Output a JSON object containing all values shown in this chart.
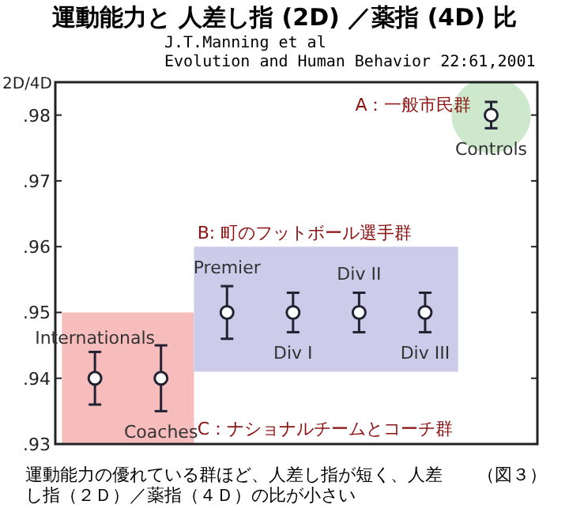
{
  "chart_data": {
    "type": "scatter",
    "title": "運動能力と 人差し指 (2D) ／薬指 (4D) 比",
    "subtitle": "J.T.Manning et al\nEvolution and Human Behavior 22:61,2001",
    "ylabel": "2D/4D",
    "categories": [
      "Internationals",
      "Coaches",
      "Premier",
      "Div I",
      "Div II",
      "Div III",
      "Controls"
    ],
    "values": [
      0.94,
      0.94,
      0.95,
      0.95,
      0.95,
      0.95,
      0.98
    ],
    "errors": [
      [
        0.936,
        0.944
      ],
      [
        0.935,
        0.945
      ],
      [
        0.946,
        0.954
      ],
      [
        0.947,
        0.953
      ],
      [
        0.947,
        0.953
      ],
      [
        0.947,
        0.953
      ],
      [
        0.978,
        0.982
      ]
    ],
    "color": "#222233",
    "marker": "circle",
    "ylim": [
      0.93,
      0.985
    ],
    "yticks": [
      {
        "value": 0.93,
        "label": ".93"
      },
      {
        "value": 0.94,
        "label": ".94"
      },
      {
        "value": 0.95,
        "label": ".95"
      },
      {
        "value": 0.96,
        "label": ".96"
      },
      {
        "value": 0.97,
        "label": ".97"
      },
      {
        "value": 0.98,
        "label": ".98"
      }
    ],
    "tick_labels": "y",
    "grid": false,
    "bands": [
      {
        "axis": "x",
        "from": "Internationals",
        "to": "Coaches",
        "label": "C：ナショナルチームとコーチ群",
        "color": "#f7bcbc"
      },
      {
        "axis": "x",
        "from": "Premier",
        "to": "Div III",
        "label": "B: 町のフットボール選手群",
        "color": "#ccccea"
      }
    ],
    "annotations": [
      {
        "text": "A：一般市民群",
        "x": "Controls",
        "y": 0.98
      },
      "運動能力の優れている群ほど、人差し指が短く、人差し指（２Ｄ）／薬指（４Ｄ）の比が小さい",
      "（図３）"
    ]
  }
}
